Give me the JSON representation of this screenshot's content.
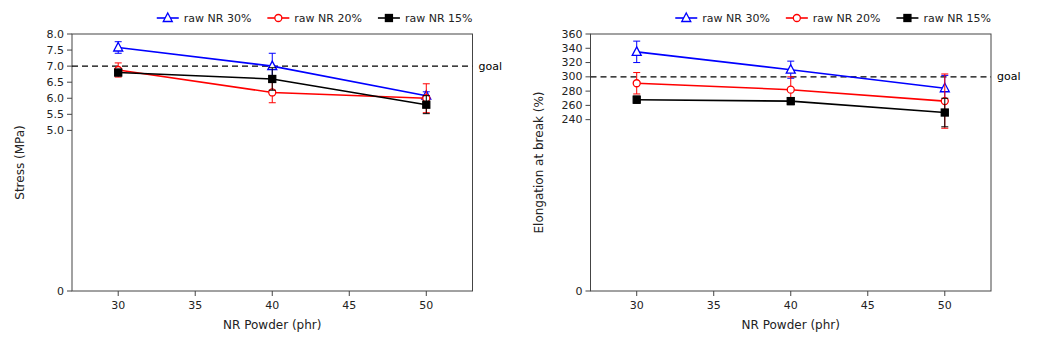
{
  "chart_data": [
    {
      "type": "line",
      "x": [
        30,
        40,
        50
      ],
      "xlabel": "NR Powder (phr)",
      "ylabel": "Stress (MPa)",
      "xlim": [
        27,
        53
      ],
      "xticks": [
        30,
        35,
        40,
        45,
        50
      ],
      "ylim": [
        0,
        8.0
      ],
      "yticks": [
        0,
        {
          "value": 5.0,
          "label": "5.0"
        },
        5.5,
        {
          "value": 6.0,
          "label": "6.0"
        },
        6.5,
        {
          "value": 7.0,
          "label": "7.0"
        },
        7.5,
        {
          "value": 8.0,
          "label": "8.0"
        }
      ],
      "grid": false,
      "legend": "upper right",
      "annotations": [
        {
          "text": "goal",
          "y": 7.0,
          "line_style": "dashed"
        }
      ],
      "series": [
        {
          "name": "raw NR 30%",
          "color": "#0000FF",
          "marker": "triangle-open",
          "values": [
            7.58,
            7.0,
            6.08
          ],
          "errors": [
            0.18,
            0.4,
            0.12
          ]
        },
        {
          "name": "raw NR 20%",
          "color": "#FF0000",
          "marker": "circle-open",
          "values": [
            6.88,
            6.18,
            6.0
          ],
          "errors": [
            0.22,
            0.32,
            0.45
          ]
        },
        {
          "name": "raw NR 15%",
          "color": "#000000",
          "marker": "square",
          "values": [
            6.8,
            6.6,
            5.8
          ],
          "errors": [
            0.1,
            0.35,
            0.28
          ]
        }
      ]
    },
    {
      "type": "line",
      "x": [
        30,
        40,
        50
      ],
      "xlabel": "NR Powder (phr)",
      "ylabel": "Elongation at break (%)",
      "xlim": [
        27,
        53
      ],
      "xticks": [
        30,
        35,
        40,
        45,
        50
      ],
      "ylim": [
        0,
        360
      ],
      "yticks": [
        0,
        240,
        260,
        280,
        300,
        320,
        340,
        360
      ],
      "grid": false,
      "legend": "upper right",
      "annotations": [
        {
          "text": "goal",
          "y": 300,
          "line_style": "dashed"
        }
      ],
      "series": [
        {
          "name": "raw NR 30%",
          "color": "#0000FF",
          "marker": "triangle-open",
          "values": [
            335,
            310,
            284
          ],
          "errors": [
            15,
            12,
            18
          ]
        },
        {
          "name": "raw NR 20%",
          "color": "#FF0000",
          "marker": "circle-open",
          "values": [
            291,
            282,
            266
          ],
          "errors": [
            15,
            18,
            38
          ]
        },
        {
          "name": "raw NR 15%",
          "color": "#000000",
          "marker": "square",
          "values": [
            268,
            266,
            250
          ],
          "errors": [
            5,
            5,
            20
          ]
        }
      ]
    }
  ]
}
